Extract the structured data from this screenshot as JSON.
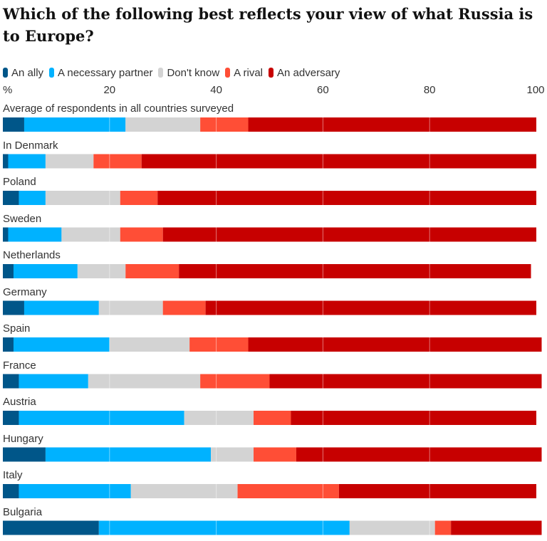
{
  "chart_data": {
    "type": "bar",
    "orientation": "horizontal",
    "stacked": true,
    "title": "Which of the following best reflects your view of what Russia is to Europe?",
    "unit_label": "%",
    "xlim": [
      0,
      100
    ],
    "ticks": [
      {
        "value": 0,
        "label": ""
      },
      {
        "value": 20,
        "label": "20"
      },
      {
        "value": 40,
        "label": "40"
      },
      {
        "value": 60,
        "label": "60"
      },
      {
        "value": 80,
        "label": "80"
      },
      {
        "value": 100,
        "label": "100"
      }
    ],
    "legend": [
      {
        "name": "An ally",
        "color": "#005689"
      },
      {
        "name": "A necessary partner",
        "color": "#00b2ff"
      },
      {
        "name": "Don't know",
        "color": "#d3d3d3"
      },
      {
        "name": "A rival",
        "color": "#ff4e36"
      },
      {
        "name": "An adversary",
        "color": "#c70000"
      }
    ],
    "categories": [
      "Average of respondents in all countries surveyed",
      "In Denmark",
      "Poland",
      "Sweden",
      "Netherlands",
      "Germany",
      "Spain",
      "France",
      "Austria",
      "Hungary",
      "Italy",
      "Bulgaria"
    ],
    "series": [
      {
        "name": "An ally",
        "color": "#005689",
        "values": [
          4,
          1,
          3,
          1,
          2,
          4,
          2,
          3,
          3,
          8,
          3,
          18
        ]
      },
      {
        "name": "A necessary partner",
        "color": "#00b2ff",
        "values": [
          19,
          7,
          5,
          10,
          12,
          14,
          18,
          13,
          31,
          31,
          21,
          47
        ]
      },
      {
        "name": "Don't know",
        "color": "#d3d3d3",
        "values": [
          14,
          9,
          14,
          11,
          9,
          12,
          15,
          21,
          13,
          8,
          20,
          16
        ]
      },
      {
        "name": "A rival",
        "color": "#ff4e36",
        "values": [
          9,
          9,
          7,
          8,
          10,
          8,
          11,
          13,
          7,
          8,
          19,
          3
        ]
      },
      {
        "name": "An adversary",
        "color": "#c70000",
        "values": [
          54,
          74,
          71,
          70,
          66,
          62,
          55,
          51,
          46,
          46,
          37,
          17
        ]
      }
    ]
  }
}
